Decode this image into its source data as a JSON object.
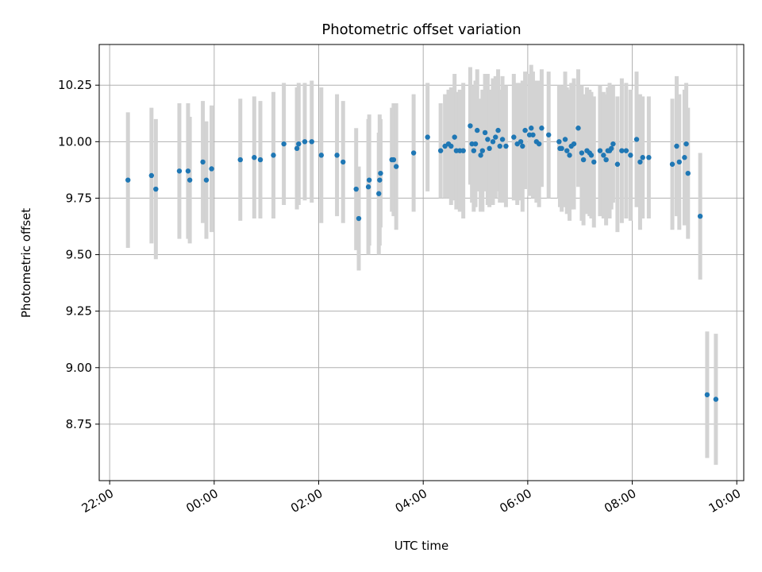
{
  "chart_data": {
    "type": "scatter",
    "title": "Photometric offset variation",
    "xlabel": "UTC time",
    "ylabel": "Photometric offset",
    "xlim": [
      "21:48",
      "10:08"
    ],
    "ylim": [
      8.5,
      10.43
    ],
    "x_ticks": [
      "22:00",
      "00:00",
      "02:00",
      "04:00",
      "06:00",
      "08:00",
      "10:00"
    ],
    "y_ticks": [
      "8.75",
      "9.00",
      "9.25",
      "9.50",
      "9.75",
      "10.00",
      "10.25"
    ],
    "grid": true,
    "colors": {
      "marker": "#1f77b4",
      "errorbar": "#d3d3d3",
      "grid": "#b0b0b0"
    },
    "series": [
      {
        "x": [
          "22:21",
          "22:48",
          "22:53",
          "23:20",
          "23:30",
          "23:32",
          "23:47",
          "23:51",
          "23:57",
          "00:30",
          "00:46",
          "00:53",
          "01:08",
          "01:20",
          "01:35",
          "01:37",
          "01:44",
          "01:52",
          "02:03",
          "02:21",
          "02:28",
          "02:43",
          "02:46",
          "02:57",
          "02:58",
          "03:09",
          "03:10",
          "03:11",
          "03:24",
          "03:26",
          "03:29",
          "03:49",
          "04:05",
          "04:20",
          "04:25",
          "04:29",
          "04:32",
          "04:36",
          "04:38",
          "04:42",
          "04:46",
          "04:54",
          "04:56",
          "04:58",
          "05:00",
          "05:02",
          "05:06",
          "05:08",
          "05:11",
          "05:14",
          "05:16",
          "05:20",
          "05:23",
          "05:26",
          "05:28",
          "05:31",
          "05:35",
          "05:44",
          "05:48",
          "05:52",
          "05:54",
          "05:57",
          "06:02",
          "06:04",
          "06:06",
          "06:10",
          "06:13",
          "06:16",
          "06:24",
          "06:36",
          "06:37",
          "06:39",
          "06:43",
          "06:45",
          "06:48",
          "06:50",
          "06:53",
          "06:58",
          "07:02",
          "07:04",
          "07:08",
          "07:11",
          "07:13",
          "07:16",
          "07:23",
          "07:27",
          "07:30",
          "07:32",
          "07:34",
          "07:36",
          "07:38",
          "07:43",
          "07:48",
          "07:53",
          "07:58",
          "08:05",
          "08:09",
          "08:12",
          "08:19",
          "08:46",
          "08:51",
          "08:54",
          "09:00",
          "09:02",
          "09:04",
          "09:18",
          "09:26",
          "09:36"
        ],
        "y": [
          9.83,
          9.85,
          9.79,
          9.87,
          9.87,
          9.83,
          9.91,
          9.83,
          9.88,
          9.92,
          9.93,
          9.92,
          9.94,
          9.99,
          9.97,
          9.99,
          10.0,
          10.0,
          9.94,
          9.94,
          9.91,
          9.79,
          9.66,
          9.8,
          9.83,
          9.77,
          9.83,
          9.86,
          9.92,
          9.92,
          9.89,
          9.95,
          10.02,
          9.96,
          9.98,
          9.99,
          9.98,
          10.02,
          9.96,
          9.96,
          9.96,
          10.07,
          9.99,
          9.96,
          9.99,
          10.05,
          9.94,
          9.96,
          10.04,
          10.01,
          9.97,
          10.0,
          10.02,
          10.05,
          9.98,
          10.01,
          9.98,
          10.02,
          9.99,
          10.0,
          9.98,
          10.05,
          10.03,
          10.06,
          10.03,
          10.0,
          9.99,
          10.06,
          10.03,
          10.0,
          9.97,
          9.97,
          10.01,
          9.96,
          9.94,
          9.98,
          9.99,
          10.06,
          9.95,
          9.92,
          9.96,
          9.95,
          9.94,
          9.91,
          9.96,
          9.94,
          9.92,
          9.96,
          9.96,
          9.97,
          9.99,
          9.9,
          9.96,
          9.96,
          9.94,
          10.01,
          9.91,
          9.93,
          9.93,
          9.9,
          9.98,
          9.91,
          9.93,
          9.99,
          9.86,
          9.67,
          8.88,
          8.86
        ],
        "yerr": [
          0.3,
          0.3,
          0.31,
          0.3,
          0.3,
          0.28,
          0.27,
          0.26,
          0.28,
          0.27,
          0.27,
          0.26,
          0.28,
          0.27,
          0.27,
          0.27,
          0.26,
          0.27,
          0.3,
          0.27,
          0.27,
          0.27,
          0.23,
          0.3,
          0.29,
          0.27,
          0.29,
          0.24,
          0.23,
          0.25,
          0.28,
          0.26,
          0.24,
          0.21,
          0.23,
          0.24,
          0.26,
          0.28,
          0.26,
          0.27,
          0.3,
          0.26,
          0.26,
          0.27,
          0.28,
          0.27,
          0.25,
          0.27,
          0.26,
          0.29,
          0.26,
          0.28,
          0.27,
          0.27,
          0.25,
          0.28,
          0.27,
          0.28,
          0.27,
          0.26,
          0.29,
          0.26,
          0.27,
          0.28,
          0.28,
          0.27,
          0.28,
          0.26,
          0.28,
          0.25,
          0.26,
          0.28,
          0.3,
          0.28,
          0.29,
          0.28,
          0.29,
          0.26,
          0.3,
          0.29,
          0.28,
          0.28,
          0.28,
          0.29,
          0.29,
          0.28,
          0.29,
          0.28,
          0.3,
          0.27,
          0.26,
          0.3,
          0.32,
          0.3,
          0.29,
          0.3,
          0.3,
          0.27,
          0.27,
          0.29,
          0.31,
          0.3,
          0.3,
          0.27,
          0.29,
          0.28,
          0.28,
          0.29
        ]
      }
    ]
  }
}
